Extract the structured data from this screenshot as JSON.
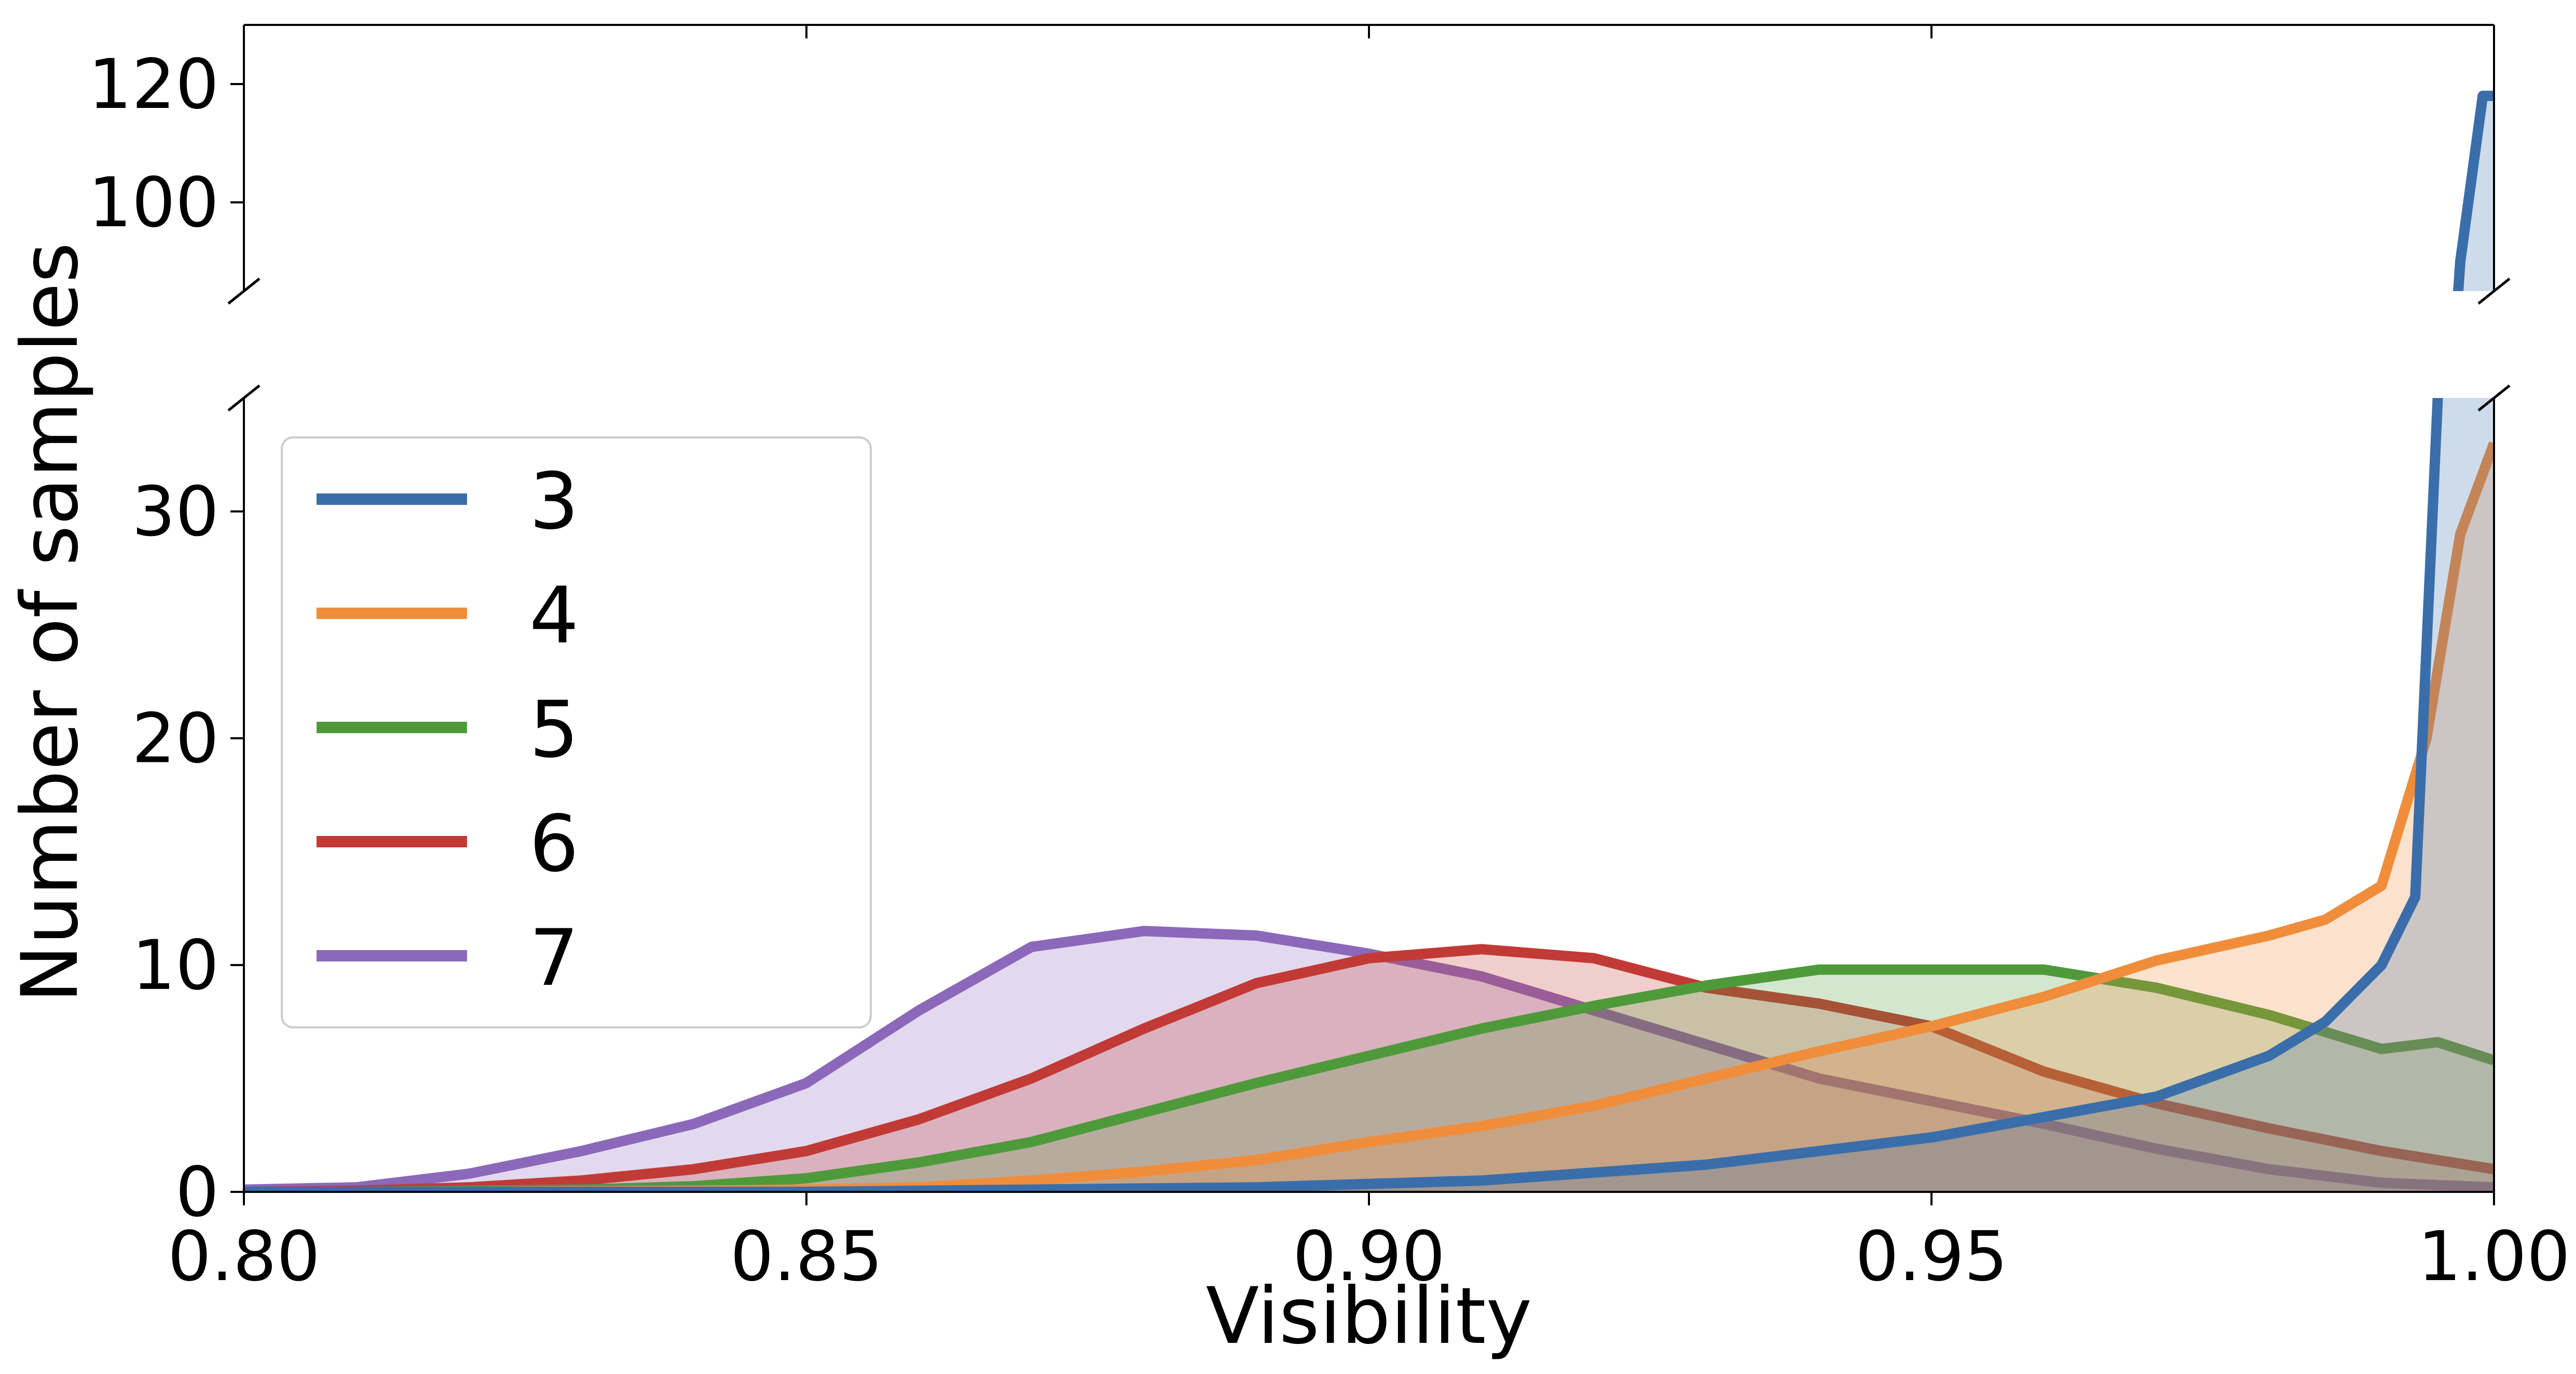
{
  "chart_data": {
    "type": "area",
    "xlabel": "Visibility",
    "ylabel": "Number of samples",
    "xlim": [
      0.8,
      1.0
    ],
    "x_ticks": [
      "0.80",
      "0.85",
      "0.90",
      "0.95",
      "1.00"
    ],
    "x_tick_values": [
      0.8,
      0.85,
      0.9,
      0.95,
      1.0
    ],
    "broken_y_axis": true,
    "upper_ylim": [
      85,
      130
    ],
    "upper_y_ticks": [
      "100",
      "120"
    ],
    "upper_y_tick_values": [
      100,
      120
    ],
    "lower_ylim": [
      0,
      35
    ],
    "lower_y_ticks": [
      "0",
      "10",
      "20",
      "30"
    ],
    "lower_y_tick_values": [
      0,
      10,
      20,
      30
    ],
    "legend_position": "upper-left",
    "series": [
      {
        "name": "7",
        "color": "#8c68ba",
        "x": [
          0.8,
          0.81,
          0.82,
          0.83,
          0.84,
          0.85,
          0.86,
          0.87,
          0.88,
          0.89,
          0.9,
          0.91,
          0.92,
          0.93,
          0.94,
          0.95,
          0.96,
          0.97,
          0.98,
          0.99,
          1.0
        ],
        "y": [
          0.1,
          0.2,
          0.8,
          1.8,
          3.0,
          4.8,
          8.0,
          10.8,
          11.5,
          11.3,
          10.5,
          9.5,
          8.0,
          6.5,
          5.0,
          4.0,
          3.0,
          1.9,
          1.0,
          0.4,
          0.2
        ]
      },
      {
        "name": "6",
        "color": "#c23a35",
        "x": [
          0.8,
          0.81,
          0.82,
          0.83,
          0.84,
          0.85,
          0.86,
          0.87,
          0.88,
          0.89,
          0.9,
          0.91,
          0.92,
          0.93,
          0.94,
          0.95,
          0.96,
          0.97,
          0.98,
          0.99,
          1.0
        ],
        "y": [
          0.0,
          0.05,
          0.2,
          0.5,
          1.0,
          1.8,
          3.2,
          5.0,
          7.2,
          9.2,
          10.3,
          10.7,
          10.3,
          9.0,
          8.3,
          7.3,
          5.3,
          3.9,
          2.8,
          1.8,
          1.0
        ]
      },
      {
        "name": "5",
        "color": "#4e9a3a",
        "x": [
          0.8,
          0.81,
          0.82,
          0.83,
          0.84,
          0.85,
          0.86,
          0.87,
          0.88,
          0.89,
          0.9,
          0.91,
          0.92,
          0.93,
          0.94,
          0.95,
          0.96,
          0.97,
          0.98,
          0.99,
          0.995,
          1.0
        ],
        "y": [
          0.0,
          0.0,
          0.05,
          0.1,
          0.25,
          0.6,
          1.3,
          2.2,
          3.5,
          4.8,
          6.0,
          7.2,
          8.2,
          9.1,
          9.8,
          9.8,
          9.8,
          9.0,
          7.8,
          6.3,
          6.6,
          5.8
        ]
      },
      {
        "name": "4",
        "color": "#f08d3b",
        "x": [
          0.8,
          0.82,
          0.84,
          0.85,
          0.86,
          0.87,
          0.88,
          0.89,
          0.9,
          0.91,
          0.92,
          0.93,
          0.94,
          0.95,
          0.96,
          0.97,
          0.98,
          0.985,
          0.99,
          0.994,
          0.997,
          1.0
        ],
        "y": [
          0.0,
          0.0,
          0.05,
          0.1,
          0.2,
          0.5,
          0.9,
          1.4,
          2.2,
          2.9,
          3.8,
          5.0,
          6.2,
          7.3,
          8.6,
          10.2,
          11.3,
          12.0,
          13.5,
          20.0,
          29.0,
          33.0
        ]
      },
      {
        "name": "3",
        "color": "#3a6eaa",
        "x": [
          0.8,
          0.85,
          0.87,
          0.89,
          0.91,
          0.93,
          0.95,
          0.97,
          0.98,
          0.985,
          0.99,
          0.993,
          0.995,
          0.997,
          0.999,
          1.0
        ],
        "y": [
          0.0,
          0.0,
          0.1,
          0.2,
          0.5,
          1.2,
          2.4,
          4.2,
          6.0,
          7.5,
          10.0,
          13.0,
          35.0,
          90.0,
          118.0,
          118.0
        ]
      }
    ],
    "legend_order": [
      "3",
      "4",
      "5",
      "6",
      "7"
    ]
  }
}
